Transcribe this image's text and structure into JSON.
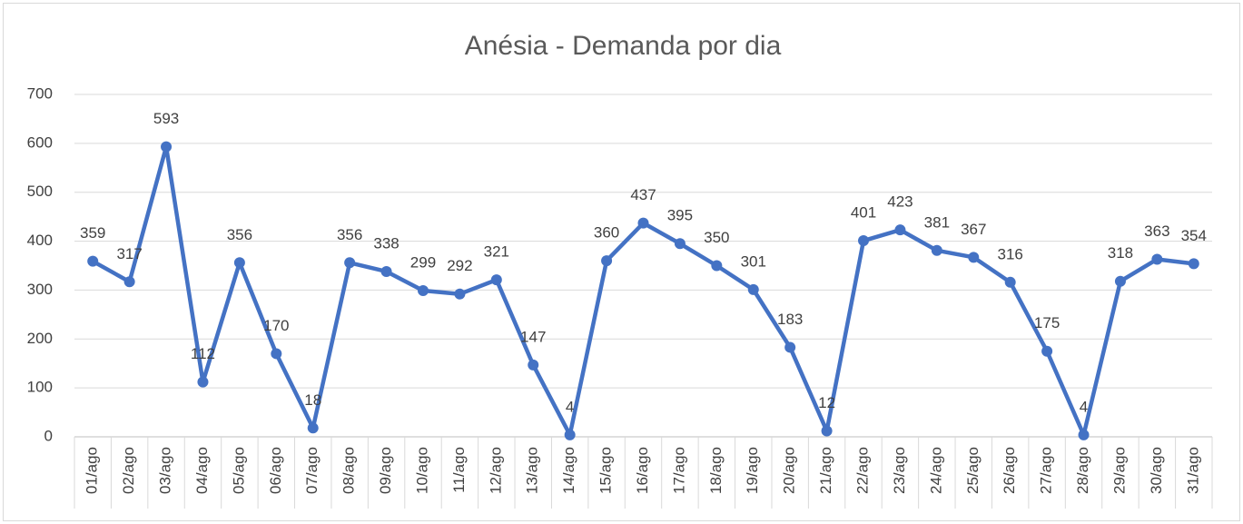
{
  "chart_data": {
    "type": "line",
    "title": "Anésia - Demanda por dia",
    "categories": [
      "01/ago",
      "02/ago",
      "03/ago",
      "04/ago",
      "05/ago",
      "06/ago",
      "07/ago",
      "08/ago",
      "09/ago",
      "10/ago",
      "11/ago",
      "12/ago",
      "13/ago",
      "14/ago",
      "15/ago",
      "16/ago",
      "17/ago",
      "18/ago",
      "19/ago",
      "20/ago",
      "21/ago",
      "22/ago",
      "23/ago",
      "24/ago",
      "25/ago",
      "26/ago",
      "27/ago",
      "28/ago",
      "29/ago",
      "30/ago",
      "31/ago"
    ],
    "values": [
      359,
      317,
      593,
      112,
      356,
      170,
      18,
      356,
      338,
      299,
      292,
      321,
      147,
      4,
      360,
      437,
      395,
      350,
      301,
      183,
      12,
      401,
      423,
      381,
      367,
      316,
      175,
      4,
      318,
      363,
      354
    ],
    "color": "#4472c4",
    "ylim": [
      0,
      700
    ],
    "yticks": [
      0,
      100,
      200,
      300,
      400,
      500,
      600,
      700
    ],
    "grid": true
  }
}
